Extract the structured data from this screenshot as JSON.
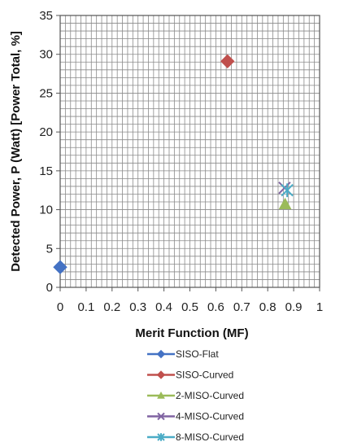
{
  "chart_data": {
    "type": "scatter",
    "title": "",
    "xlabel": "Merit Function (MF)",
    "ylabel": "Detected Power, P (Watt) [Power Total, %]",
    "xlim": [
      0,
      1
    ],
    "ylim": [
      0,
      35
    ],
    "xticks": [
      "0",
      "0.1",
      "0.2",
      "0.3",
      "0.4",
      "0.5",
      "0.6",
      "0.7",
      "0.8",
      "0.9",
      "1"
    ],
    "yticks": [
      "0",
      "5",
      "10",
      "15",
      "20",
      "25",
      "30",
      "35"
    ],
    "x_minor_step": 0.02,
    "y_minor_step": 1,
    "grid": true,
    "legend_position": "bottom",
    "series": [
      {
        "name": "SISO-Flat",
        "marker": "diamond",
        "color": "#4472C4",
        "points": [
          {
            "x": 0.0,
            "y": 2.6
          }
        ]
      },
      {
        "name": "SISO-Curved",
        "marker": "diamond",
        "color": "#C0504D",
        "points": [
          {
            "x": 0.645,
            "y": 29.1
          }
        ]
      },
      {
        "name": "2-MISO-Curved",
        "marker": "triangle",
        "color": "#9BBB59",
        "points": [
          {
            "x": 0.867,
            "y": 10.7
          }
        ]
      },
      {
        "name": "4-MISO-Curved",
        "marker": "x",
        "color": "#8064A2",
        "points": [
          {
            "x": 0.865,
            "y": 12.8
          }
        ]
      },
      {
        "name": "8-MISO-Curved",
        "marker": "star",
        "color": "#4BACC6",
        "points": [
          {
            "x": 0.875,
            "y": 12.5
          }
        ]
      }
    ]
  }
}
